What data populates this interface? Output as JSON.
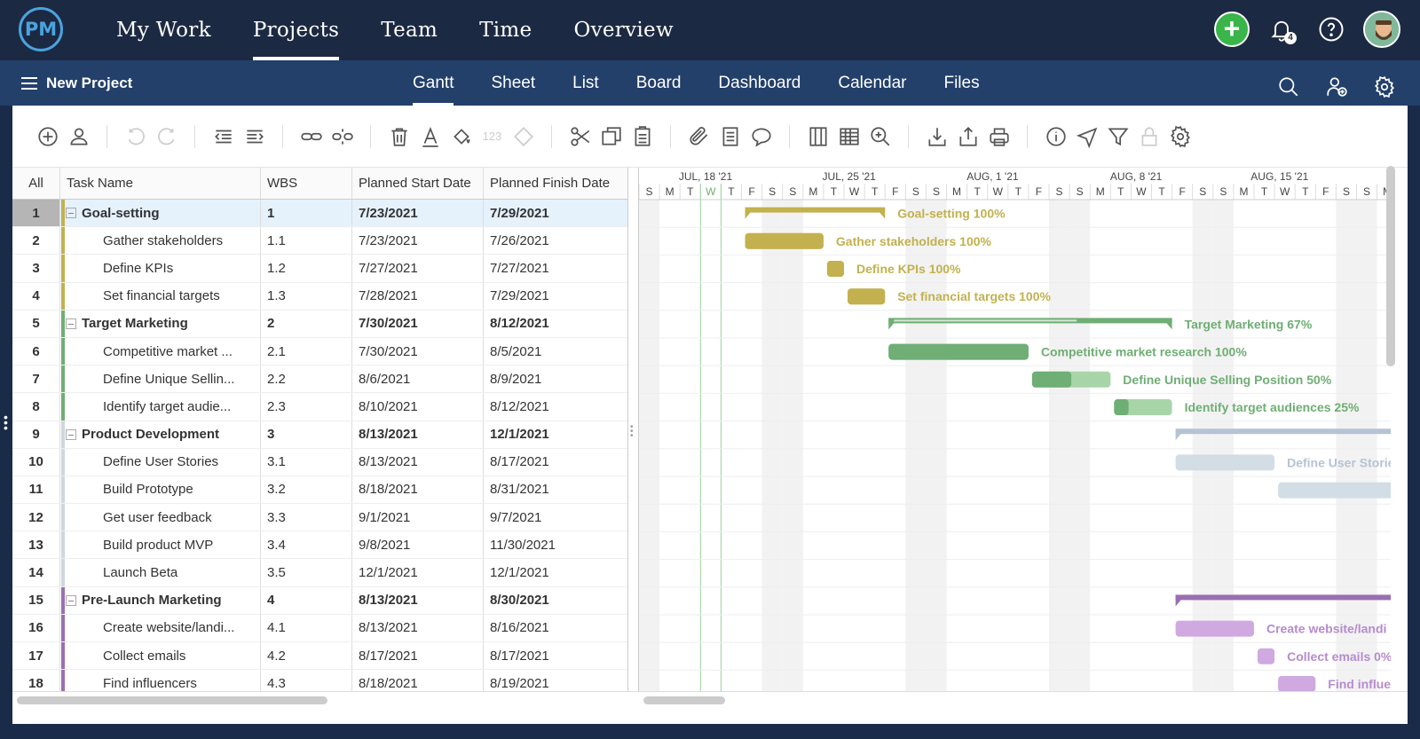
{
  "nav": {
    "logo": "PM",
    "items": [
      "My Work",
      "Projects",
      "Team",
      "Time",
      "Overview"
    ],
    "active_index": 1,
    "notif_count": "4"
  },
  "subnav": {
    "project_title": "New Project",
    "tabs": [
      "Gantt",
      "Sheet",
      "List",
      "Board",
      "Dashboard",
      "Calendar",
      "Files"
    ],
    "active_index": 0
  },
  "toolbar": {
    "number_format_label": "123"
  },
  "grid": {
    "headers": [
      "All",
      "Task Name",
      "WBS",
      "Planned Start Date",
      "Planned Finish Date"
    ],
    "rows": [
      {
        "num": "1",
        "name": "Goal-setting",
        "wbs": "1",
        "start": "7/23/2021",
        "finish": "7/29/2021",
        "parent": true,
        "color": "#c2b14e",
        "selected": true
      },
      {
        "num": "2",
        "name": "Gather stakeholders",
        "wbs": "1.1",
        "start": "7/23/2021",
        "finish": "7/26/2021",
        "parent": false,
        "color": "#c2b14e"
      },
      {
        "num": "3",
        "name": "Define KPIs",
        "wbs": "1.2",
        "start": "7/27/2021",
        "finish": "7/27/2021",
        "parent": false,
        "color": "#c2b14e"
      },
      {
        "num": "4",
        "name": "Set financial targets",
        "wbs": "1.3",
        "start": "7/28/2021",
        "finish": "7/29/2021",
        "parent": false,
        "color": "#c2b14e"
      },
      {
        "num": "5",
        "name": "Target Marketing",
        "wbs": "2",
        "start": "7/30/2021",
        "finish": "8/12/2021",
        "parent": true,
        "color": "#6fae74"
      },
      {
        "num": "6",
        "name": "Competitive market ...",
        "wbs": "2.1",
        "start": "7/30/2021",
        "finish": "8/5/2021",
        "parent": false,
        "color": "#6fae74"
      },
      {
        "num": "7",
        "name": "Define Unique Sellin...",
        "wbs": "2.2",
        "start": "8/6/2021",
        "finish": "8/9/2021",
        "parent": false,
        "color": "#6fae74"
      },
      {
        "num": "8",
        "name": "Identify target audie...",
        "wbs": "2.3",
        "start": "8/10/2021",
        "finish": "8/12/2021",
        "parent": false,
        "color": "#6fae74"
      },
      {
        "num": "9",
        "name": "Product Development",
        "wbs": "3",
        "start": "8/13/2021",
        "finish": "12/1/2021",
        "parent": true,
        "color": "#d0d6de"
      },
      {
        "num": "10",
        "name": "Define User Stories",
        "wbs": "3.1",
        "start": "8/13/2021",
        "finish": "8/17/2021",
        "parent": false,
        "color": "#d0d6de"
      },
      {
        "num": "11",
        "name": "Build Prototype",
        "wbs": "3.2",
        "start": "8/18/2021",
        "finish": "8/31/2021",
        "parent": false,
        "color": "#d0d6de"
      },
      {
        "num": "12",
        "name": "Get user feedback",
        "wbs": "3.3",
        "start": "9/1/2021",
        "finish": "9/7/2021",
        "parent": false,
        "color": "#d0d6de"
      },
      {
        "num": "13",
        "name": "Build product MVP",
        "wbs": "3.4",
        "start": "9/8/2021",
        "finish": "11/30/2021",
        "parent": false,
        "color": "#d0d6de"
      },
      {
        "num": "14",
        "name": "Launch Beta",
        "wbs": "3.5",
        "start": "12/1/2021",
        "finish": "12/1/2021",
        "parent": false,
        "color": "#d0d6de"
      },
      {
        "num": "15",
        "name": "Pre-Launch Marketing",
        "wbs": "4",
        "start": "8/13/2021",
        "finish": "8/30/2021",
        "parent": true,
        "color": "#9a6fb0"
      },
      {
        "num": "16",
        "name": "Create website/landi...",
        "wbs": "4.1",
        "start": "8/13/2021",
        "finish": "8/16/2021",
        "parent": false,
        "color": "#9a6fb0"
      },
      {
        "num": "17",
        "name": "Collect emails",
        "wbs": "4.2",
        "start": "8/17/2021",
        "finish": "8/17/2021",
        "parent": false,
        "color": "#9a6fb0"
      },
      {
        "num": "18",
        "name": "Find influencers",
        "wbs": "4.3",
        "start": "8/18/2021",
        "finish": "8/19/2021",
        "parent": false,
        "color": "#9a6fb0"
      }
    ]
  },
  "gantt": {
    "weeks": [
      "JUL, 18 '21",
      "JUL, 25 '21",
      "AUG, 1 '21",
      "AUG, 8 '21",
      "AUG, 15 '21"
    ],
    "day_letters": [
      "S",
      "M",
      "T",
      "W",
      "T",
      "F",
      "S",
      "S",
      "M",
      "T",
      "W",
      "T",
      "F",
      "S",
      "S",
      "M",
      "T",
      "W",
      "T",
      "F",
      "S",
      "S",
      "M",
      "T",
      "W",
      "T",
      "F",
      "S",
      "S",
      "M",
      "T",
      "W",
      "T",
      "F",
      "S",
      "S",
      "M"
    ],
    "bars": [
      {
        "label": "Goal-setting",
        "pct": "100%",
        "progress": 1.0,
        "summary": true,
        "color": "#c2b14e",
        "light": "#ddd08a",
        "text_color": "#c2b14e"
      },
      {
        "label": "Gather stakeholders",
        "pct": "100%",
        "progress": 1.0,
        "summary": false,
        "color": "#c2b14e",
        "light": "#ddd08a",
        "text_color": "#c2b14e"
      },
      {
        "label": "Define KPIs",
        "pct": "100%",
        "progress": 1.0,
        "summary": false,
        "color": "#c2b14e",
        "light": "#ddd08a",
        "text_color": "#c2b14e"
      },
      {
        "label": "Set financial targets",
        "pct": "100%",
        "progress": 1.0,
        "summary": false,
        "color": "#c2b14e",
        "light": "#ddd08a",
        "text_color": "#c2b14e"
      },
      {
        "label": "Target Marketing",
        "pct": "67%",
        "progress": 0.67,
        "summary": true,
        "color": "#6fae74",
        "light": "#a8d5a8",
        "text_color": "#6fae74"
      },
      {
        "label": "Competitive market research",
        "pct": "100%",
        "progress": 1.0,
        "summary": false,
        "color": "#6fae74",
        "light": "#a8d5a8",
        "text_color": "#6fae74"
      },
      {
        "label": "Define Unique Selling Position",
        "pct": "50%",
        "progress": 0.5,
        "summary": false,
        "color": "#6fae74",
        "light": "#a8d5a8",
        "text_color": "#6fae74"
      },
      {
        "label": "Identify target audiences",
        "pct": "25%",
        "progress": 0.25,
        "summary": false,
        "color": "#6fae74",
        "light": "#a8d5a8",
        "text_color": "#6fae74"
      },
      {
        "label": "",
        "pct": "",
        "progress": 0,
        "summary": true,
        "color": "#b6c3d3",
        "light": "#b6c3d3",
        "text_color": "#b6c3d3"
      },
      {
        "label": "Define User Stories",
        "pct": "",
        "progress": 0,
        "summary": false,
        "color": "#d3dde6",
        "light": "#d3dde6",
        "text_color": "#b6c3d3"
      },
      {
        "label": "",
        "pct": "",
        "progress": 0,
        "summary": false,
        "color": "#d3dde6",
        "light": "#d3dde6",
        "text_color": "#b6c3d3"
      },
      {
        "label": "",
        "pct": "",
        "progress": 0,
        "summary": false,
        "color": "#d3dde6",
        "light": "#d3dde6",
        "text_color": "#b6c3d3"
      },
      {
        "label": "",
        "pct": "",
        "progress": 0,
        "summary": false,
        "color": "#d3dde6",
        "light": "#d3dde6",
        "text_color": "#b6c3d3"
      },
      {
        "label": "",
        "pct": "",
        "progress": 0,
        "summary": false,
        "color": "#d3dde6",
        "light": "#d3dde6",
        "text_color": "#b6c3d3"
      },
      {
        "label": "",
        "pct": "",
        "progress": 0,
        "summary": true,
        "color": "#9a6fb0",
        "light": "#9a6fb0",
        "text_color": "#9a6fb0"
      },
      {
        "label": "Create website/landi",
        "pct": "",
        "progress": 0,
        "summary": false,
        "color": "#cfa9e0",
        "light": "#cfa9e0",
        "text_color": "#b68bcf"
      },
      {
        "label": "Collect emails",
        "pct": "0%",
        "progress": 0,
        "summary": false,
        "color": "#cfa9e0",
        "light": "#cfa9e0",
        "text_color": "#b68bcf"
      },
      {
        "label": "Find influe",
        "pct": "",
        "progress": 0,
        "summary": false,
        "color": "#cfa9e0",
        "light": "#cfa9e0",
        "text_color": "#b68bcf"
      }
    ]
  }
}
